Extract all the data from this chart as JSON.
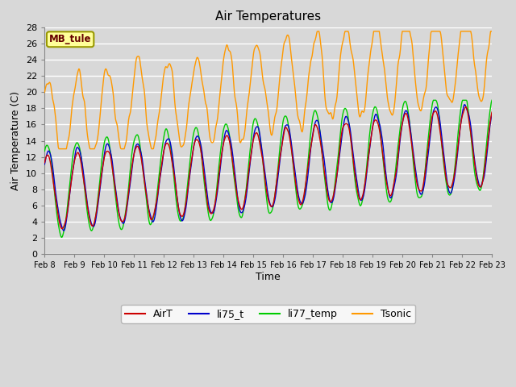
{
  "title": "Air Temperatures",
  "xlabel": "Time",
  "ylabel": "Air Temperature (C)",
  "ylim": [
    0,
    28
  ],
  "yticks": [
    0,
    2,
    4,
    6,
    8,
    10,
    12,
    14,
    16,
    18,
    20,
    22,
    24,
    26,
    28
  ],
  "series_colors": {
    "AirT": "#cc0000",
    "li75_t": "#0000cc",
    "li77_temp": "#00cc00",
    "Tsonic": "#ff9900"
  },
  "legend_labels": [
    "AirT",
    "li75_t",
    "li77_temp",
    "Tsonic"
  ],
  "station_label": "MB_tule",
  "station_box_color": "#ffff99",
  "station_text_color": "#660000",
  "background_color": "#d8d8d8",
  "plot_bg_color": "#d8d8d8",
  "grid_color": "#ffffff",
  "n_points": 720,
  "x_start": 8.0,
  "x_end": 23.0,
  "xtick_positions": [
    8,
    9,
    10,
    11,
    12,
    13,
    14,
    15,
    16,
    17,
    18,
    19,
    20,
    21,
    22,
    23
  ],
  "xtick_labels": [
    "Feb 8",
    "Feb 9",
    "Feb 10",
    "Feb 11",
    "Feb 12",
    "Feb 13",
    "Feb 14",
    "Feb 15",
    "Feb 16",
    "Feb 17",
    "Feb 18",
    "Feb 19",
    "Feb 20",
    "Feb 21",
    "Feb 22",
    "Feb 23"
  ]
}
